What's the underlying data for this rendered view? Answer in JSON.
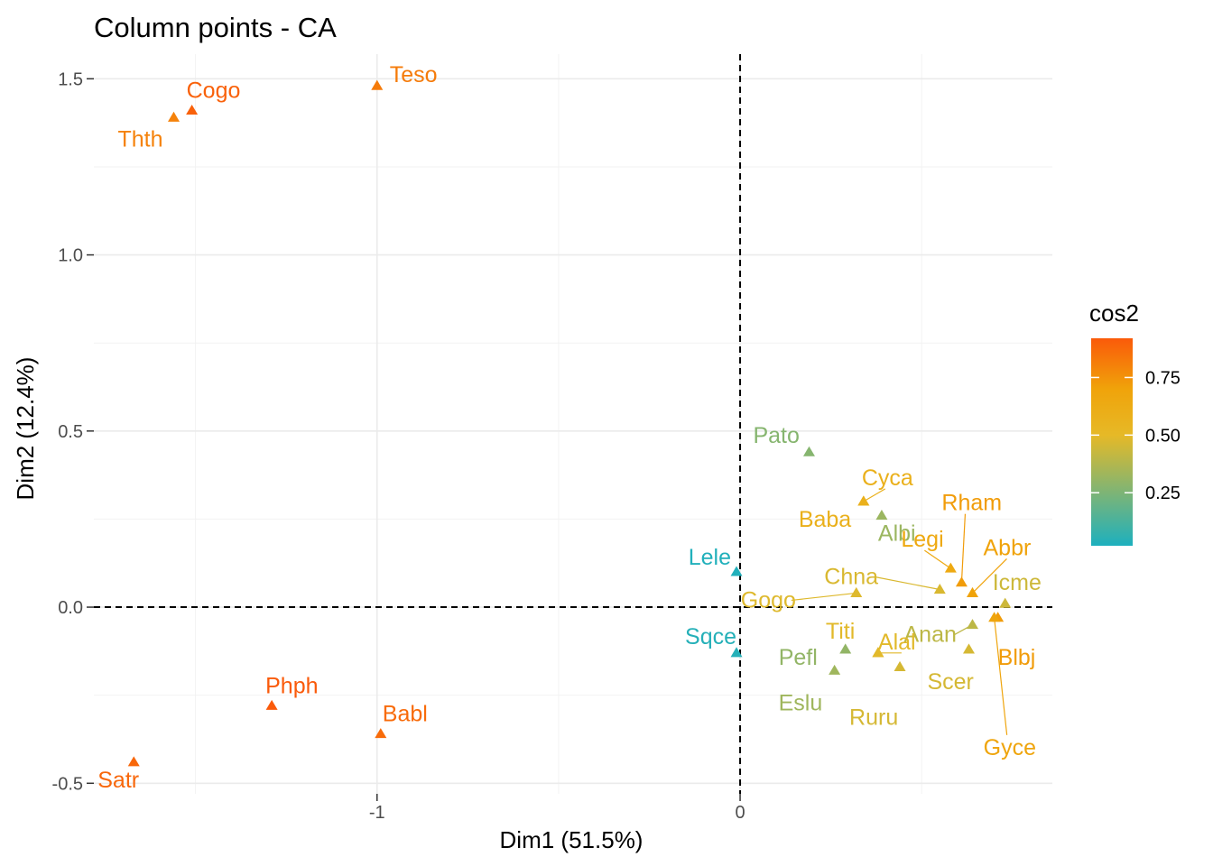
{
  "chart_data": {
    "type": "scatter",
    "title": "Column points - CA",
    "xlabel": "Dim1 (51.5%)",
    "ylabel": "Dim2 (12.4%)",
    "xlim": [
      -1.78,
      0.86
    ],
    "ylim": [
      -0.53,
      1.57
    ],
    "x_ticks": [
      -1,
      0
    ],
    "x_tick_labels": [
      "-1",
      "0"
    ],
    "y_ticks": [
      -0.5,
      0.0,
      0.5,
      1.0,
      1.5
    ],
    "y_tick_labels": [
      "-0.5",
      "0.0",
      "0.5",
      "1.0",
      "1.5"
    ],
    "grid": true,
    "reference_lines": {
      "x": 0,
      "y": 0,
      "style": "dashed"
    },
    "legend": {
      "title": "cos2",
      "placement": "right",
      "ticks": [
        0.25,
        0.5,
        0.75
      ],
      "tick_labels": [
        "0.25",
        "0.50",
        "0.75"
      ],
      "range": [
        0.02,
        0.92
      ],
      "colors": [
        "#1db0be",
        "#e6b927",
        "#f0a30a",
        "#fa5a0a"
      ]
    },
    "points": [
      {
        "label": "Teso",
        "x": -1.0,
        "y": 1.48,
        "cos2": 0.82
      },
      {
        "label": "Cogo",
        "x": -1.51,
        "y": 1.41,
        "cos2": 0.9
      },
      {
        "label": "Thth",
        "x": -1.56,
        "y": 1.39,
        "cos2": 0.8
      },
      {
        "label": "Phph",
        "x": -1.29,
        "y": -0.28,
        "cos2": 0.92
      },
      {
        "label": "Babl",
        "x": -0.99,
        "y": -0.36,
        "cos2": 0.87
      },
      {
        "label": "Satr",
        "x": -1.67,
        "y": -0.44,
        "cos2": 0.88
      },
      {
        "label": "Lele",
        "x": -0.01,
        "y": 0.1,
        "cos2": 0.03
      },
      {
        "label": "Sqce",
        "x": -0.01,
        "y": -0.13,
        "cos2": 0.04
      },
      {
        "label": "Pato",
        "x": 0.19,
        "y": 0.44,
        "cos2": 0.27
      },
      {
        "label": "Cyca",
        "x": 0.34,
        "y": 0.3,
        "cos2": 0.58
      },
      {
        "label": "Albi",
        "x": 0.39,
        "y": 0.26,
        "cos2": 0.32
      },
      {
        "label": "Baba",
        "x": 0.34,
        "y": 0.3,
        "cos2": 0.58
      },
      {
        "label": "Rham",
        "x": 0.61,
        "y": 0.07,
        "cos2": 0.72
      },
      {
        "label": "Legi",
        "x": 0.58,
        "y": 0.11,
        "cos2": 0.65
      },
      {
        "label": "Abbr",
        "x": 0.64,
        "y": 0.04,
        "cos2": 0.7
      },
      {
        "label": "Chna",
        "x": 0.55,
        "y": 0.05,
        "cos2": 0.47
      },
      {
        "label": "Icme",
        "x": 0.73,
        "y": 0.01,
        "cos2": 0.44
      },
      {
        "label": "Gogo",
        "x": 0.32,
        "y": 0.04,
        "cos2": 0.48
      },
      {
        "label": "Anan",
        "x": 0.64,
        "y": -0.05,
        "cos2": 0.4
      },
      {
        "label": "Titi",
        "x": 0.38,
        "y": -0.13,
        "cos2": 0.49
      },
      {
        "label": "Alal",
        "x": 0.38,
        "y": -0.13,
        "cos2": 0.49
      },
      {
        "label": "Blbj",
        "x": 0.71,
        "y": -0.03,
        "cos2": 0.72
      },
      {
        "label": "Pefl",
        "x": 0.29,
        "y": -0.12,
        "cos2": 0.3
      },
      {
        "label": "Scer",
        "x": 0.63,
        "y": -0.12,
        "cos2": 0.46
      },
      {
        "label": "Eslu",
        "x": 0.26,
        "y": -0.18,
        "cos2": 0.33
      },
      {
        "label": "Ruru",
        "x": 0.44,
        "y": -0.17,
        "cos2": 0.46
      },
      {
        "label": "Gyce",
        "x": 0.7,
        "y": -0.03,
        "cos2": 0.68
      }
    ]
  }
}
